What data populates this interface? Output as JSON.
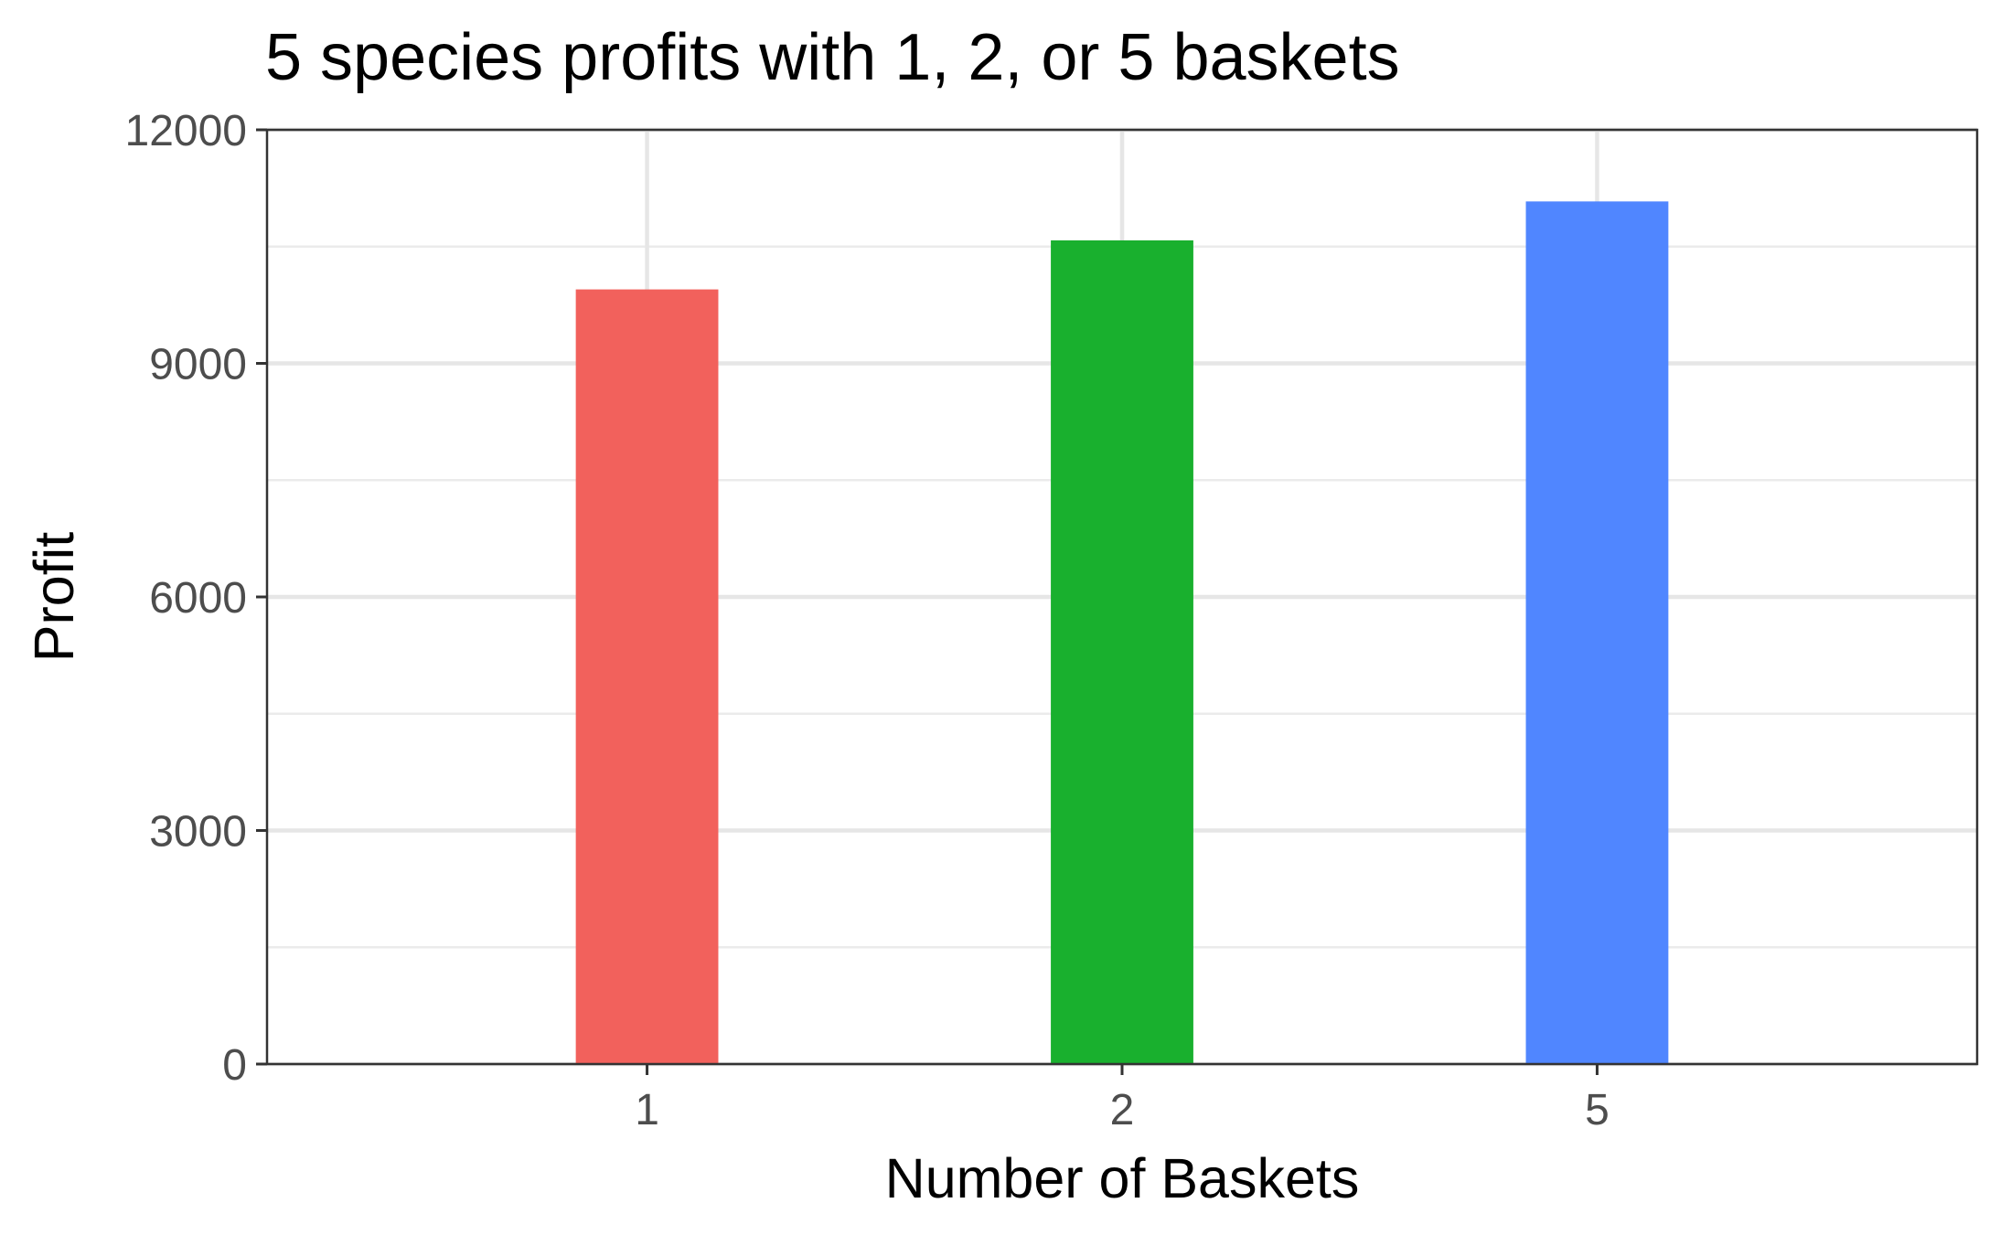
{
  "chart_data": {
    "type": "bar",
    "title": "5 species profits with 1, 2, or 5 baskets",
    "xlabel": "Number of Baskets",
    "ylabel": "Profit",
    "categories": [
      "1",
      "2",
      "5"
    ],
    "values": [
      9950,
      10580,
      11080
    ],
    "colors": [
      "#F2615C",
      "#19B02E",
      "#5086FF"
    ],
    "ylim": [
      0,
      12000
    ],
    "yticks": [
      0,
      3000,
      6000,
      9000,
      12000
    ],
    "ytick_labels": [
      "0",
      "3000",
      "6000",
      "9000",
      "12000"
    ],
    "grid": true,
    "legend": "none"
  }
}
